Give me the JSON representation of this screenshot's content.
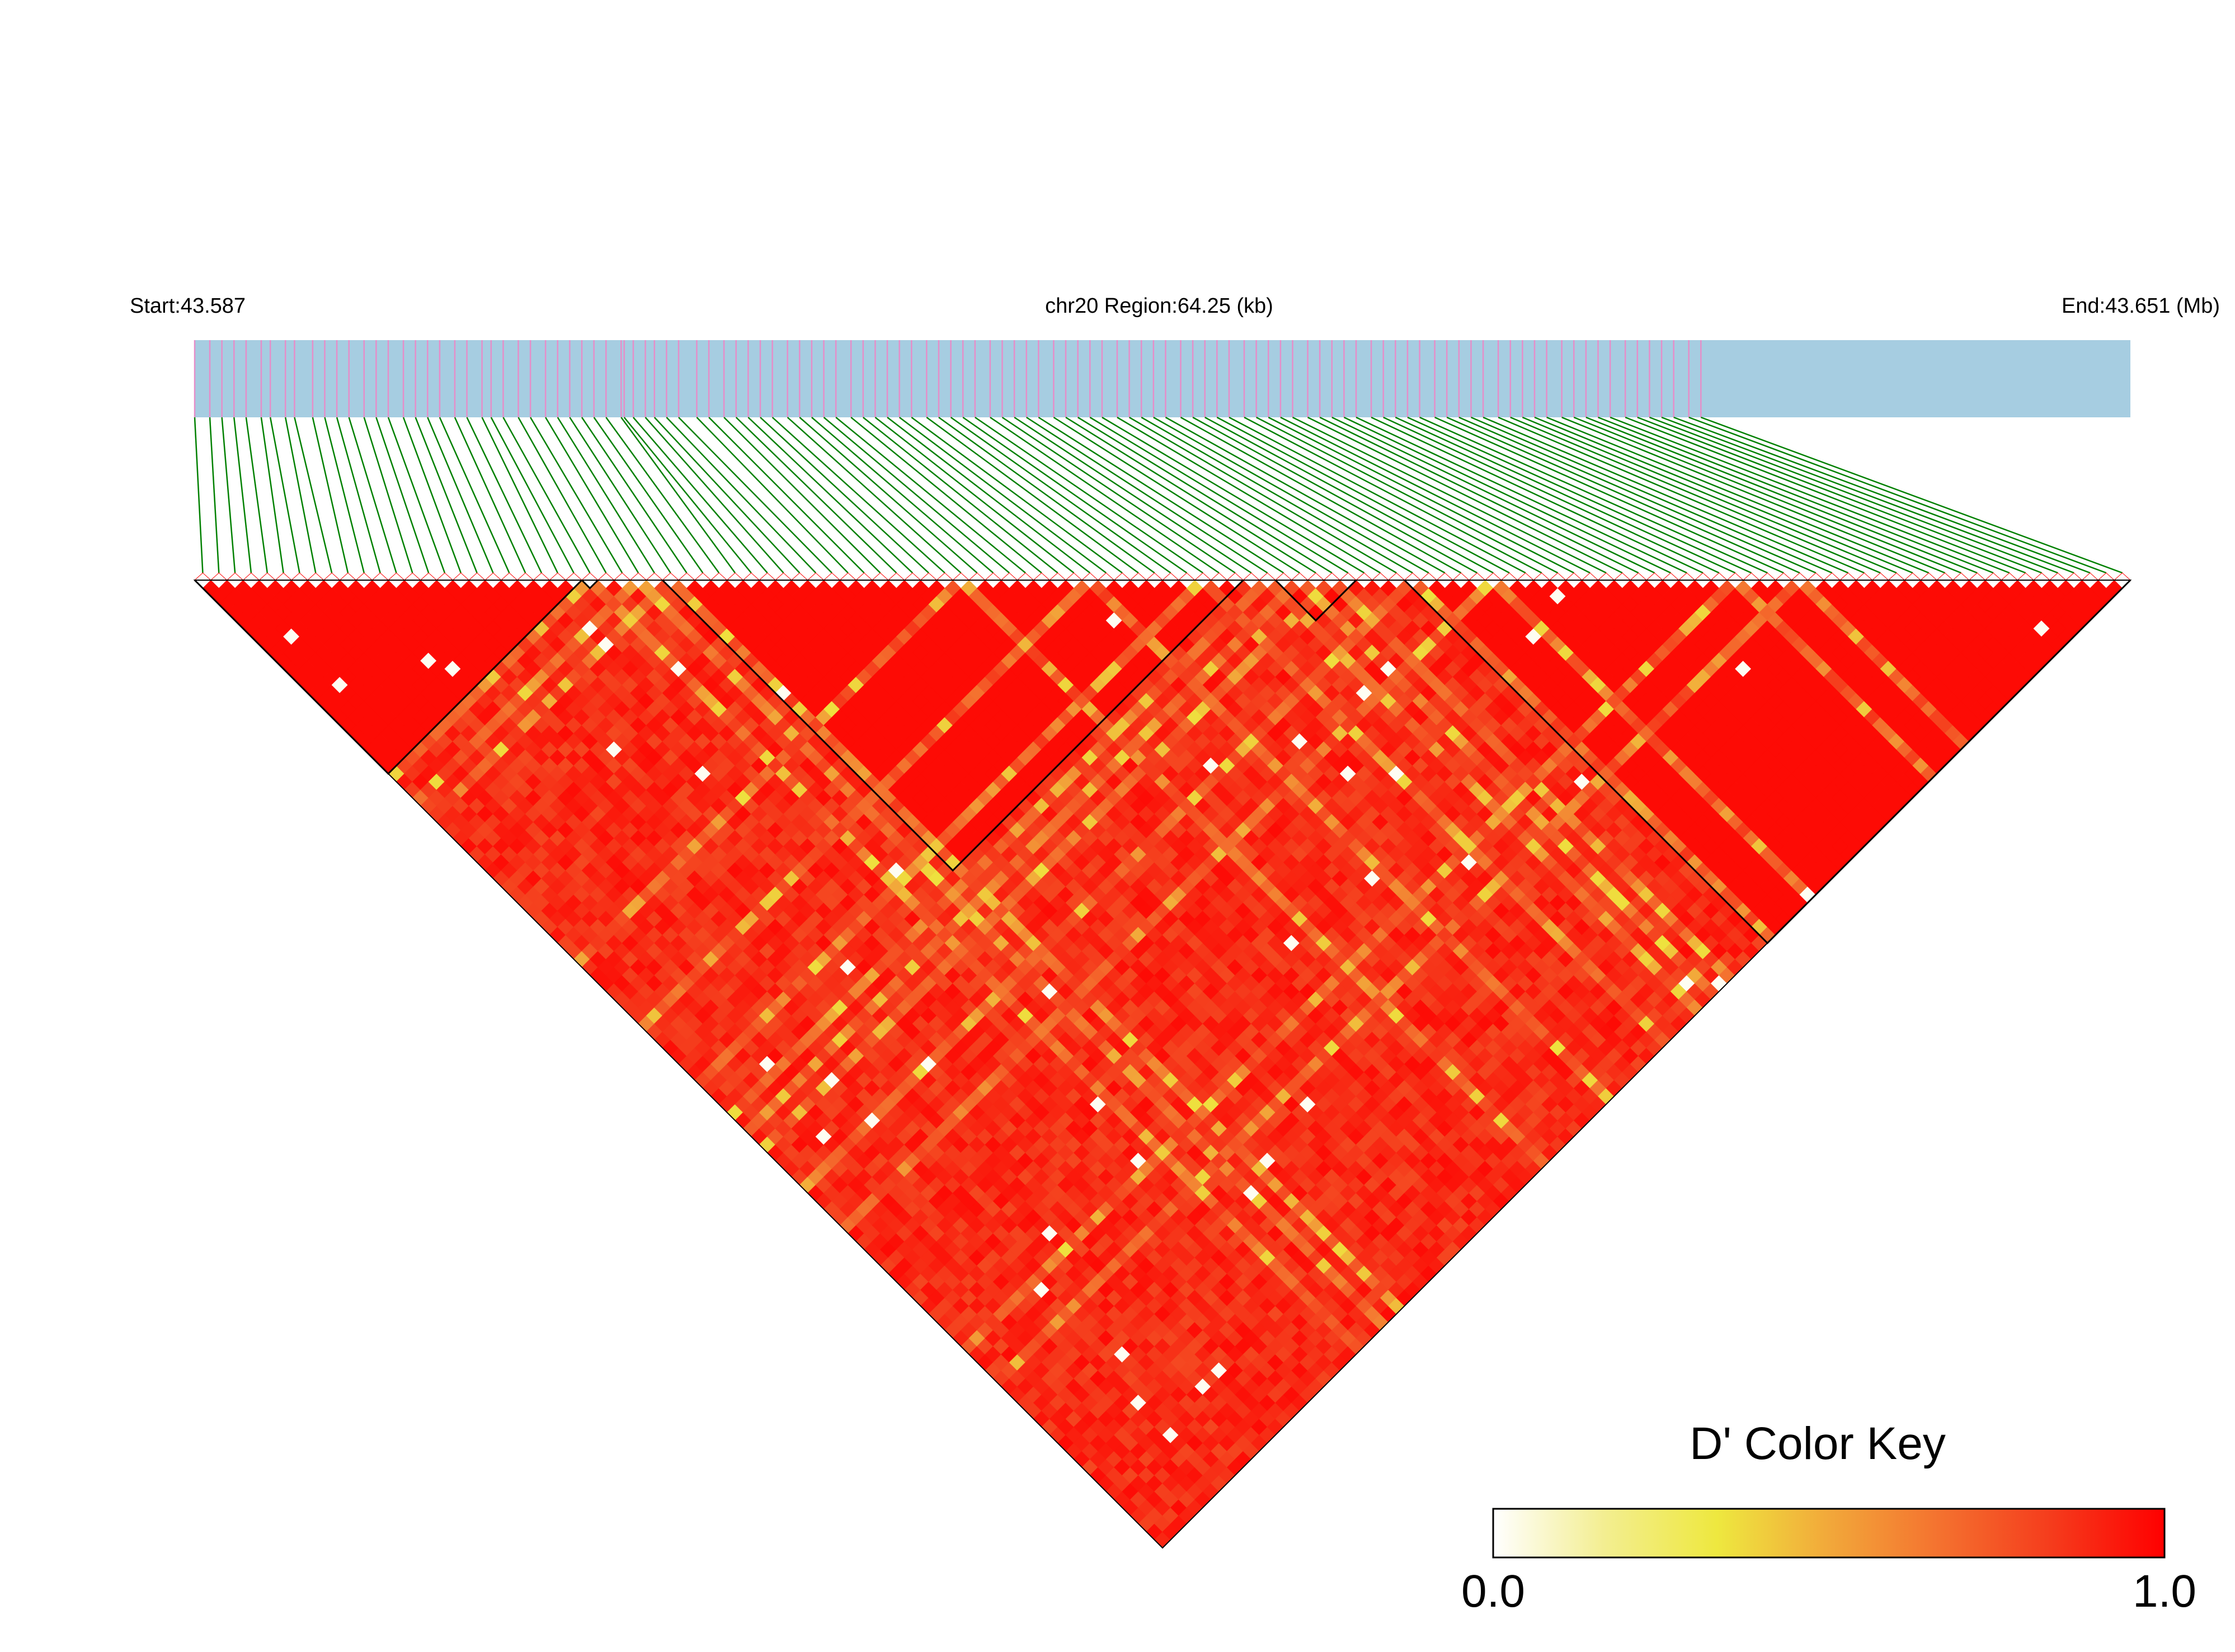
{
  "header": {
    "start_label": "Start:43.587",
    "region_label": "chr20 Region:64.25 (kb)",
    "end_label": "End:43.651 (Mb)"
  },
  "legend": {
    "title": "D' Color Key",
    "min_label": "0.0",
    "max_label": "1.0",
    "gradient_colors": [
      "#ffffff",
      "#f3ee90",
      "#eee83f",
      "#f2a83a",
      "#f4712f",
      "#f53b1c",
      "#ff0000"
    ]
  },
  "colors": {
    "track_fill": "#a6cde1",
    "snp_tick": "#e58ec9",
    "connector": "#008000",
    "ld_high": "#ff0000",
    "ld_mid": "#f3ee3f",
    "ld_low": "#ffffff",
    "block_outline": "#000000"
  },
  "chart_data": {
    "type": "heatmap",
    "description_type": "LD (D') triangle heatmap",
    "chromosome": "chr20",
    "region_kb": 64.25,
    "start_mb": 43.587,
    "end_mb": 43.651,
    "snp_count": 120,
    "snp_positions_mb": [
      43.587,
      43.5875,
      43.5879,
      43.5883,
      43.5887,
      43.5892,
      43.5895,
      43.59,
      43.5903,
      43.5909,
      43.5913,
      43.5917,
      43.5921,
      43.5926,
      43.593,
      43.5934,
      43.5939,
      43.5943,
      43.5947,
      43.5951,
      43.5956,
      43.596,
      43.5965,
      43.5968,
      43.5972,
      43.5977,
      43.5981,
      43.5986,
      43.599,
      43.5994,
      43.5998,
      43.6002,
      43.6006,
      43.6011,
      43.6012,
      43.6015,
      43.6019,
      43.6022,
      43.6026,
      43.603,
      43.6036,
      43.604,
      43.6045,
      43.6049,
      43.6053,
      43.6057,
      43.6061,
      43.6066,
      43.607,
      43.6074,
      43.6078,
      43.6082,
      43.6087,
      43.6091,
      43.6095,
      43.6099,
      43.6103,
      43.6107,
      43.6112,
      43.6116,
      43.612,
      43.6124,
      43.6128,
      43.6133,
      43.6137,
      43.6141,
      43.6145,
      43.6149,
      43.6154,
      43.6158,
      43.6162,
      43.6166,
      43.617,
      43.6175,
      43.6179,
      43.6183,
      43.6187,
      43.6191,
      43.6196,
      43.62,
      43.6204,
      43.6208,
      43.6212,
      43.6217,
      43.6221,
      43.6225,
      43.6229,
      43.6233,
      43.6238,
      43.6242,
      43.6246,
      43.625,
      43.6254,
      43.6259,
      43.6263,
      43.6267,
      43.6271,
      43.6275,
      43.628,
      43.6284,
      43.6288,
      43.6292,
      43.6296,
      43.6301,
      43.6305,
      43.6309,
      43.6313,
      43.6317,
      43.6322,
      43.6326,
      43.633,
      43.6334,
      43.6338,
      43.6343,
      43.6347,
      43.6351,
      43.6355,
      43.6359,
      43.6364,
      43.6368
    ],
    "d_prime_scale": [
      0,
      1
    ],
    "ld_blocks_snp_index": [
      [
        0,
        24
      ],
      [
        24,
        25
      ],
      [
        29,
        65
      ],
      [
        67,
        72
      ],
      [
        75,
        120
      ]
    ],
    "low_ld_diagonals_snp_index": [
      24,
      27,
      29,
      47,
      55,
      62,
      66,
      68,
      70,
      75,
      80,
      95,
      99
    ],
    "default_d_prime": 0.97
  }
}
